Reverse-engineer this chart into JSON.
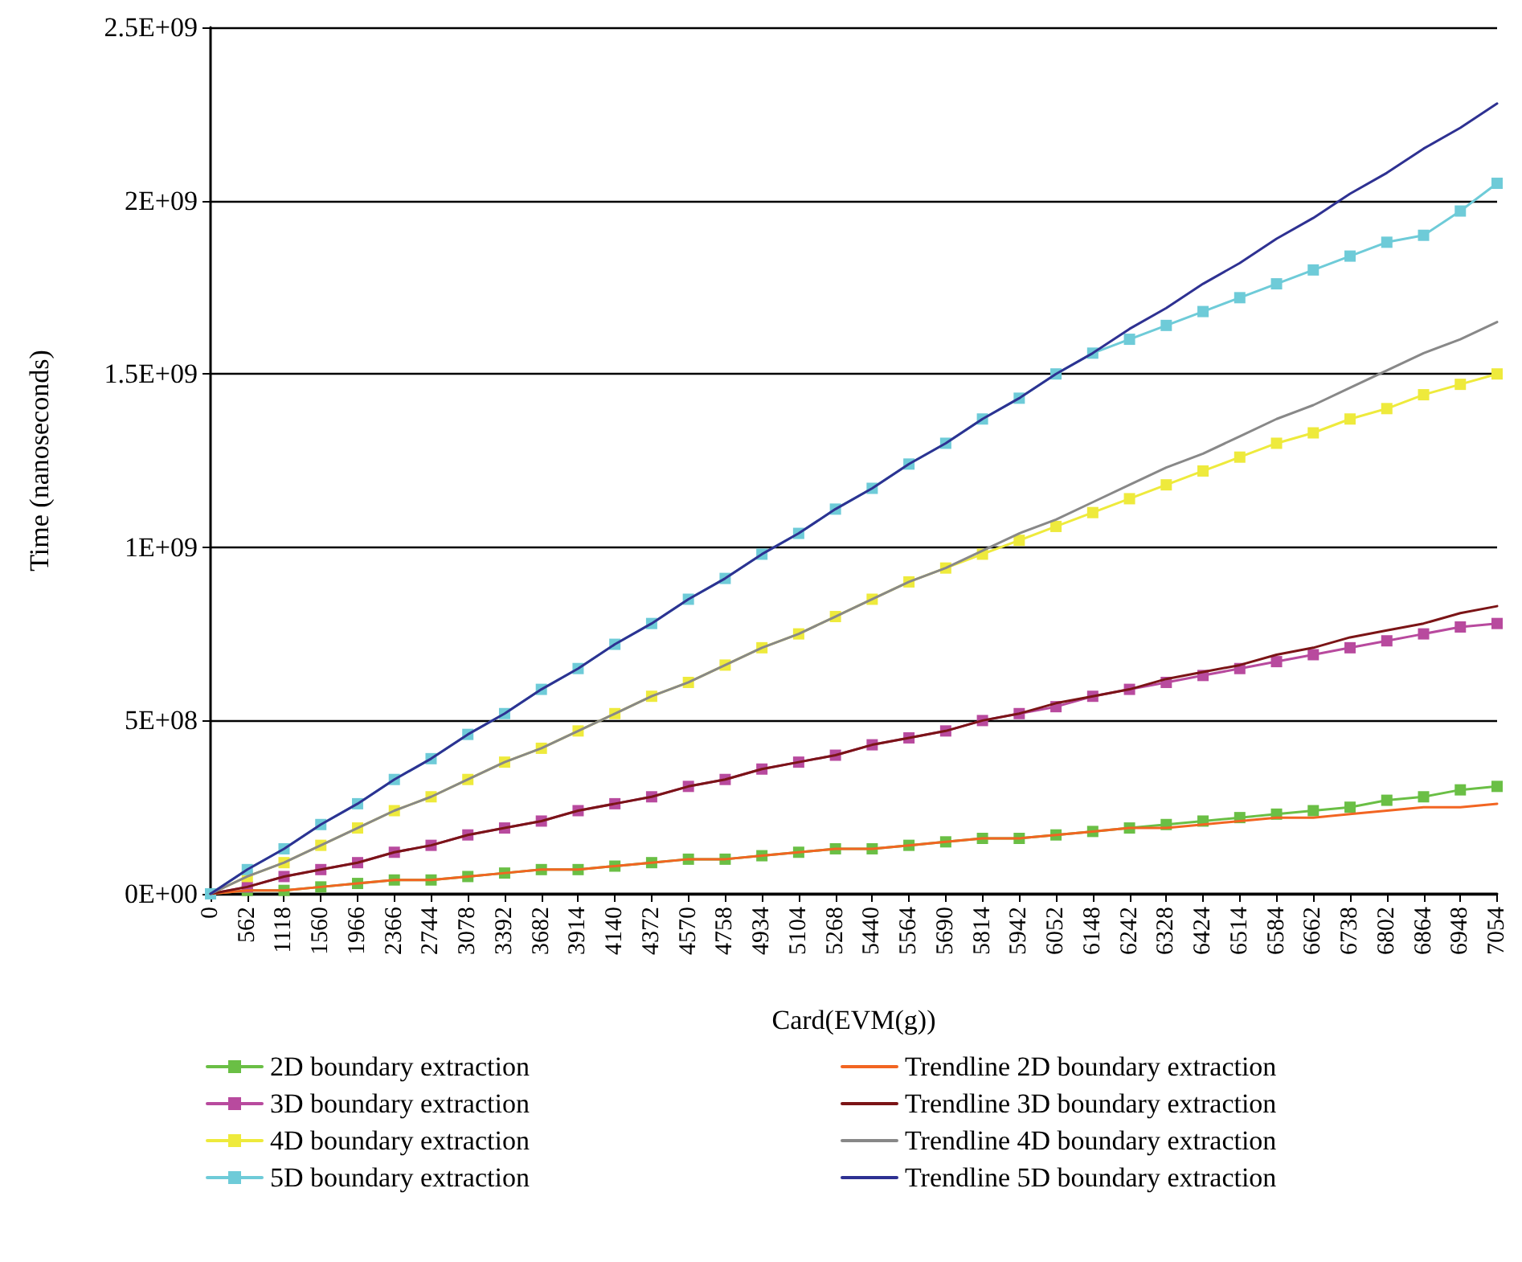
{
  "chart_data": {
    "type": "line",
    "xlabel": "Card(EVM(g))",
    "ylabel": "Time (nanoseconds)",
    "categories": [
      "0",
      "562",
      "1118",
      "1560",
      "1966",
      "2366",
      "2744",
      "3078",
      "3392",
      "3682",
      "3914",
      "4140",
      "4372",
      "4570",
      "4758",
      "4934",
      "5104",
      "5268",
      "5440",
      "5564",
      "5690",
      "5814",
      "5942",
      "6052",
      "6148",
      "6242",
      "6328",
      "6424",
      "6514",
      "6584",
      "6662",
      "6738",
      "6802",
      "6864",
      "6948",
      "7054"
    ],
    "ylim": [
      0,
      2500000000.0
    ],
    "yticks": [
      {
        "value": 0,
        "label": "0E+00"
      },
      {
        "value": 500000000.0,
        "label": "5E+08"
      },
      {
        "value": 1000000000.0,
        "label": "1E+09"
      },
      {
        "value": 1500000000.0,
        "label": "1.5E+09"
      },
      {
        "value": 2000000000.0,
        "label": "2E+09"
      },
      {
        "value": 2500000000.0,
        "label": "2.5E+09"
      }
    ],
    "grid": "y",
    "legend": "bottom",
    "series": [
      {
        "name": "2D boundary extraction",
        "color": "#6abf45",
        "marker": "square",
        "values": [
          0,
          10000000.0,
          10000000.0,
          20000000.0,
          30000000.0,
          40000000.0,
          40000000.0,
          50000000.0,
          60000000.0,
          70000000.0,
          70000000.0,
          80000000.0,
          90000000.0,
          100000000.0,
          100000000.0,
          110000000.0,
          120000000.0,
          130000000.0,
          130000000.0,
          140000000.0,
          150000000.0,
          160000000.0,
          160000000.0,
          170000000.0,
          180000000.0,
          190000000.0,
          200000000.0,
          210000000.0,
          220000000.0,
          230000000.0,
          240000000.0,
          250000000.0,
          270000000.0,
          280000000.0,
          300000000.0,
          310000000.0
        ]
      },
      {
        "name": "3D boundary extraction",
        "color": "#b84a9e",
        "marker": "square",
        "values": [
          0,
          20000000.0,
          50000000.0,
          70000000.0,
          90000000.0,
          120000000.0,
          140000000.0,
          170000000.0,
          190000000.0,
          210000000.0,
          240000000.0,
          260000000.0,
          280000000.0,
          310000000.0,
          330000000.0,
          360000000.0,
          380000000.0,
          400000000.0,
          430000000.0,
          450000000.0,
          470000000.0,
          500000000.0,
          520000000.0,
          540000000.0,
          570000000.0,
          590000000.0,
          610000000.0,
          630000000.0,
          650000000.0,
          670000000.0,
          690000000.0,
          710000000.0,
          730000000.0,
          750000000.0,
          770000000.0,
          780000000.0
        ]
      },
      {
        "name": "4D boundary extraction",
        "color": "#eeea3c",
        "marker": "square",
        "values": [
          0,
          50000000.0,
          90000000.0,
          140000000.0,
          190000000.0,
          240000000.0,
          280000000.0,
          330000000.0,
          380000000.0,
          420000000.0,
          470000000.0,
          520000000.0,
          570000000.0,
          610000000.0,
          660000000.0,
          710000000.0,
          750000000.0,
          800000000.0,
          850000000.0,
          900000000.0,
          940000000.0,
          980000000.0,
          1020000000.0,
          1060000000.0,
          1100000000.0,
          1140000000.0,
          1180000000.0,
          1220000000.0,
          1260000000.0,
          1300000000.0,
          1330000000.0,
          1370000000.0,
          1400000000.0,
          1440000000.0,
          1470000000.0,
          1500000000.0
        ]
      },
      {
        "name": "5D boundary extraction",
        "color": "#6ecbd8",
        "marker": "square",
        "values": [
          0,
          70000000.0,
          130000000.0,
          200000000.0,
          260000000.0,
          330000000.0,
          390000000.0,
          460000000.0,
          520000000.0,
          590000000.0,
          650000000.0,
          720000000.0,
          780000000.0,
          850000000.0,
          910000000.0,
          980000000.0,
          1040000000.0,
          1110000000.0,
          1170000000.0,
          1240000000.0,
          1300000000.0,
          1370000000.0,
          1430000000.0,
          1500000000.0,
          1560000000.0,
          1600000000.0,
          1640000000.0,
          1680000000.0,
          1720000000.0,
          1760000000.0,
          1800000000.0,
          1840000000.0,
          1880000000.0,
          1900000000.0,
          1970000000.0,
          2050000000.0
        ]
      },
      {
        "name": "Trendline 2D boundary extraction",
        "color": "#f26522",
        "marker": "none",
        "values": [
          0,
          10000000.0,
          10000000.0,
          20000000.0,
          30000000.0,
          40000000.0,
          40000000.0,
          50000000.0,
          60000000.0,
          70000000.0,
          70000000.0,
          80000000.0,
          90000000.0,
          100000000.0,
          100000000.0,
          110000000.0,
          120000000.0,
          130000000.0,
          130000000.0,
          140000000.0,
          150000000.0,
          160000000.0,
          160000000.0,
          170000000.0,
          180000000.0,
          190000000.0,
          190000000.0,
          200000000.0,
          210000000.0,
          220000000.0,
          220000000.0,
          230000000.0,
          240000000.0,
          250000000.0,
          250000000.0,
          260000000.0
        ]
      },
      {
        "name": "Trendline 3D boundary extraction",
        "color": "#7b1416",
        "marker": "none",
        "values": [
          0,
          20000000.0,
          50000000.0,
          70000000.0,
          90000000.0,
          120000000.0,
          140000000.0,
          170000000.0,
          190000000.0,
          210000000.0,
          240000000.0,
          260000000.0,
          280000000.0,
          310000000.0,
          330000000.0,
          360000000.0,
          380000000.0,
          400000000.0,
          430000000.0,
          450000000.0,
          470000000.0,
          500000000.0,
          520000000.0,
          550000000.0,
          570000000.0,
          590000000.0,
          620000000.0,
          640000000.0,
          660000000.0,
          690000000.0,
          710000000.0,
          740000000.0,
          760000000.0,
          780000000.0,
          810000000.0,
          830000000.0
        ]
      },
      {
        "name": "Trendline 4D boundary extraction",
        "color": "#888888",
        "marker": "none",
        "values": [
          0,
          50000000.0,
          90000000.0,
          140000000.0,
          190000000.0,
          240000000.0,
          280000000.0,
          330000000.0,
          380000000.0,
          420000000.0,
          470000000.0,
          520000000.0,
          570000000.0,
          610000000.0,
          660000000.0,
          710000000.0,
          750000000.0,
          800000000.0,
          850000000.0,
          900000000.0,
          940000000.0,
          990000000.0,
          1040000000.0,
          1080000000.0,
          1130000000.0,
          1180000000.0,
          1230000000.0,
          1270000000.0,
          1320000000.0,
          1370000000.0,
          1410000000.0,
          1460000000.0,
          1510000000.0,
          1560000000.0,
          1600000000.0,
          1650000000.0
        ]
      },
      {
        "name": "Trendline 5D boundary extraction",
        "color": "#2e3192",
        "marker": "none",
        "values": [
          0,
          70000000.0,
          130000000.0,
          200000000.0,
          260000000.0,
          330000000.0,
          390000000.0,
          460000000.0,
          520000000.0,
          590000000.0,
          650000000.0,
          720000000.0,
          780000000.0,
          850000000.0,
          910000000.0,
          980000000.0,
          1040000000.0,
          1110000000.0,
          1170000000.0,
          1240000000.0,
          1300000000.0,
          1370000000.0,
          1430000000.0,
          1500000000.0,
          1560000000.0,
          1630000000.0,
          1690000000.0,
          1760000000.0,
          1820000000.0,
          1890000000.0,
          1950000000.0,
          2020000000.0,
          2080000000.0,
          2150000000.0,
          2210000000.0,
          2280000000.0
        ]
      }
    ]
  }
}
